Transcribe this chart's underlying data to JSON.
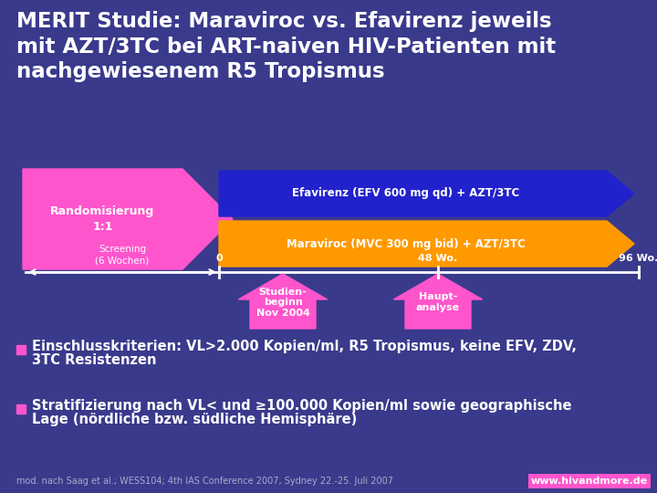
{
  "bg_color": "#3a3a8c",
  "title_lines": [
    "MERIT Studie: Maraviroc vs. Efavirenz jeweils",
    "mit AZT/3TC bei ART-naiven HIV-Patienten mit",
    "nachgewiesenem R5 Tropismus"
  ],
  "title_color": "#ffffff",
  "title_fontsize": 16.5,
  "rand_arrow_color": "#ff55cc",
  "rand_text": "Randomisierung\n1:1",
  "rand_text_color": "#ffffff",
  "efv_arrow_color": "#2222cc",
  "efv_text": "Efavirenz (EFV 600 mg qd) + AZT/3TC",
  "efv_text_color": "#ffffff",
  "mvc_arrow_color": "#ff9900",
  "mvc_text": "Maraviroc (MVC 300 mg bid) + AZT/3TC",
  "mvc_text_color": "#ffffff",
  "timeline_color": "#ffffff",
  "tick_label_0": "0",
  "tick_label_48": "48 Wo.",
  "tick_label_96": "96 Wo.",
  "screening_text": "Screening\n(6 Wochen)",
  "up_arrow_color": "#ff55cc",
  "up_arrow1_text": "Studien-\nbeginn\nNov 2004",
  "up_arrow2_text": "Haupt-\nanalyse",
  "bullet_color": "#ff55cc",
  "bullet1_line1": "Einschlusskriterien: VL>2.000 Kopien/ml, R5 Tropismus, keine EFV, ZDV,",
  "bullet1_line2": "3TC Resistenzen",
  "bullet2_line1": "Stratifizierung nach VL< und ≥100.000 Kopien/ml sowie geographische",
  "bullet2_line2": "Lage (nördliche bzw. südliche Hemisphäre)",
  "bullet_fontsize": 10.5,
  "footer_text": "mod. nach Saag et al.; WESS104; 4th IAS Conference 2007, Sydney 22.-25. Juli 2007",
  "footer_color": "#aaaacc",
  "footer_fontsize": 7,
  "web_text": "www.hivandmore.de",
  "web_bg": "#ff55cc",
  "web_color": "#ffffff",
  "web_fontsize": 8
}
